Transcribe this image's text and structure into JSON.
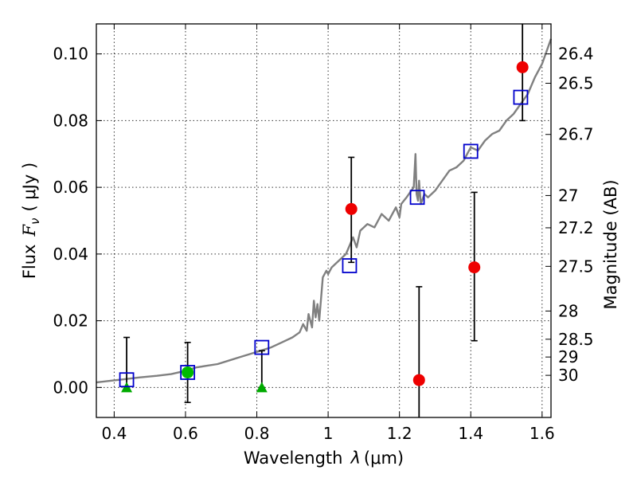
{
  "chart_data": {
    "type": "scatter",
    "title": "",
    "xlabel": "Wavelength",
    "xlabel_symbol": "λ",
    "xlabel_unit": "(μm)",
    "ylabel": "Flux",
    "ylabel_symbol": "F",
    "ylabel_subscript": "ν",
    "ylabel_unit": "( μJy )",
    "ylabel_right": "Magnitude (AB)",
    "xlim": [
      0.35,
      1.625
    ],
    "ylim": [
      -0.009,
      0.109
    ],
    "grid": true,
    "xticks": [
      0.4,
      0.6,
      0.8,
      1.0,
      1.2,
      1.4,
      1.6
    ],
    "xtick_labels": [
      "0.4",
      "0.6",
      "0.8",
      "1",
      "1.2",
      "1.4",
      "1.6"
    ],
    "yticks": [
      0.0,
      0.02,
      0.04,
      0.06,
      0.08,
      0.1
    ],
    "ytick_labels": [
      "0.00",
      "0.02",
      "0.04",
      "0.06",
      "0.08",
      "0.10"
    ],
    "mag_ticks": [
      26.4,
      26.5,
      26.7,
      27,
      27.2,
      27.5,
      28,
      28.5,
      29,
      30
    ],
    "mag_tick_labels": [
      "26.4",
      "26.5",
      "26.7",
      "27",
      "27.2",
      "27.5",
      "28",
      "28.5",
      "29",
      "30"
    ],
    "colors": {
      "template": "#808080",
      "model": "#0000cc",
      "detection": "#ee0000",
      "optical": "#00bb00",
      "upper_limit": "#00aa00",
      "errorbar": "#000000"
    },
    "series": [
      {
        "name": "template spectrum",
        "style": "line",
        "x": [
          0.35,
          0.39,
          0.43,
          0.47,
          0.52,
          0.56,
          0.6,
          0.63,
          0.66,
          0.69,
          0.72,
          0.75,
          0.78,
          0.81,
          0.84,
          0.87,
          0.9,
          0.92,
          0.93,
          0.94,
          0.945,
          0.955,
          0.96,
          0.965,
          0.97,
          0.975,
          0.985,
          0.99,
          0.995,
          1.0,
          1.01,
          1.03,
          1.05,
          1.07,
          1.08,
          1.09,
          1.11,
          1.13,
          1.15,
          1.17,
          1.19,
          1.2,
          1.205,
          1.22,
          1.24,
          1.245,
          1.248,
          1.252,
          1.255,
          1.26,
          1.27,
          1.28,
          1.3,
          1.32,
          1.34,
          1.36,
          1.38,
          1.4,
          1.42,
          1.44,
          1.46,
          1.48,
          1.5,
          1.52,
          1.54,
          1.56,
          1.58,
          1.6,
          1.625
        ],
        "y": [
          0.0015,
          0.002,
          0.0025,
          0.003,
          0.0035,
          0.004,
          0.005,
          0.006,
          0.0065,
          0.007,
          0.008,
          0.009,
          0.01,
          0.011,
          0.012,
          0.0135,
          0.015,
          0.0165,
          0.019,
          0.017,
          0.022,
          0.018,
          0.026,
          0.021,
          0.025,
          0.02,
          0.033,
          0.034,
          0.035,
          0.034,
          0.036,
          0.038,
          0.04,
          0.045,
          0.042,
          0.047,
          0.049,
          0.048,
          0.052,
          0.05,
          0.054,
          0.051,
          0.055,
          0.057,
          0.06,
          0.07,
          0.058,
          0.056,
          0.062,
          0.055,
          0.058,
          0.057,
          0.059,
          0.062,
          0.065,
          0.066,
          0.068,
          0.072,
          0.071,
          0.074,
          0.076,
          0.077,
          0.08,
          0.082,
          0.085,
          0.088,
          0.093,
          0.097,
          0.1045
        ]
      },
      {
        "name": "template band fluxes",
        "style": "open-square",
        "x": [
          0.435,
          0.606,
          0.814,
          1.06,
          1.25,
          1.4,
          1.54
        ],
        "y": [
          0.0023,
          0.0045,
          0.012,
          0.0365,
          0.057,
          0.0708,
          0.087
        ]
      },
      {
        "name": "detections",
        "style": "filled-circle",
        "x": [
          0.606,
          1.065,
          1.255,
          1.41,
          1.545
        ],
        "y": [
          0.0045,
          0.0535,
          0.0022,
          0.036,
          0.096
        ],
        "yerr_low": [
          0.009,
          0.016,
          0.013,
          0.022,
          0.016
        ],
        "yerr_high": [
          0.009,
          0.0155,
          0.028,
          0.0225,
          0.016
        ]
      },
      {
        "name": "non-detections",
        "style": "filled-triangle",
        "x": [
          0.435,
          0.814
        ],
        "y": [
          0.0,
          0.0
        ],
        "yerr_low": [
          0.0,
          0.0
        ],
        "yerr_high": [
          0.015,
          0.011
        ]
      }
    ]
  }
}
